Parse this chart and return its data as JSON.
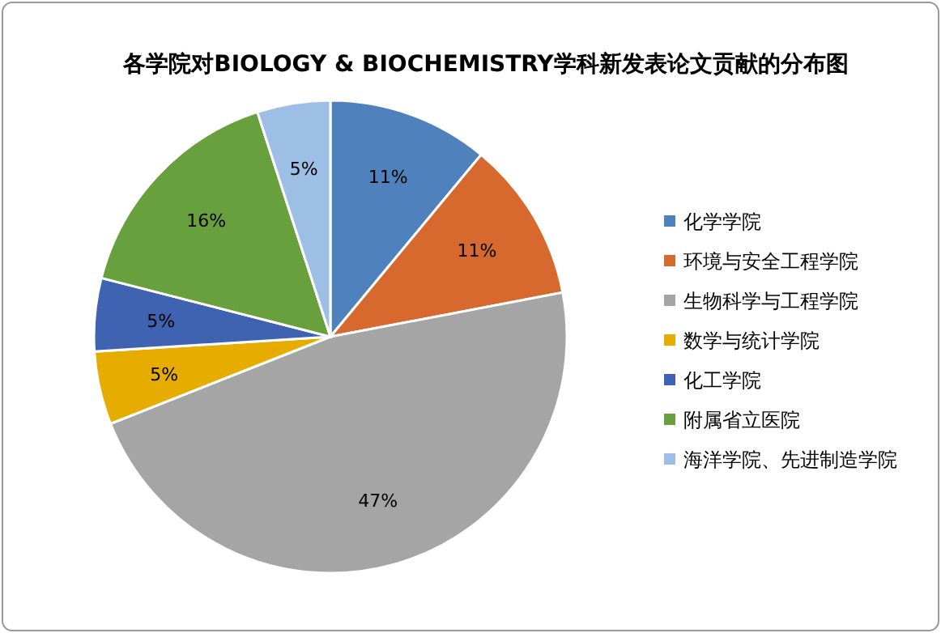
{
  "chart_data": {
    "type": "pie",
    "title": "各学院对BIOLOGY & BIOCHEMISTRY学科新发表论文贡献的分布图",
    "categories": [
      "化学学院",
      "环境与安全工程学院",
      "生物科学与工程学院",
      "数学与统计学院",
      "化工学院",
      "附属省立医院",
      "海洋学院、先进制造学院"
    ],
    "values": [
      11,
      11,
      47,
      5,
      5,
      16,
      5
    ],
    "colors": [
      "#4f81bd",
      "#d8692e",
      "#a5a5a5",
      "#e6ad00",
      "#3f63b0",
      "#67a03d",
      "#9ebfe5"
    ],
    "value_labels": [
      "11%",
      "11%",
      "47%",
      "5%",
      "5%",
      "16%",
      "5%"
    ],
    "legend": "right"
  }
}
